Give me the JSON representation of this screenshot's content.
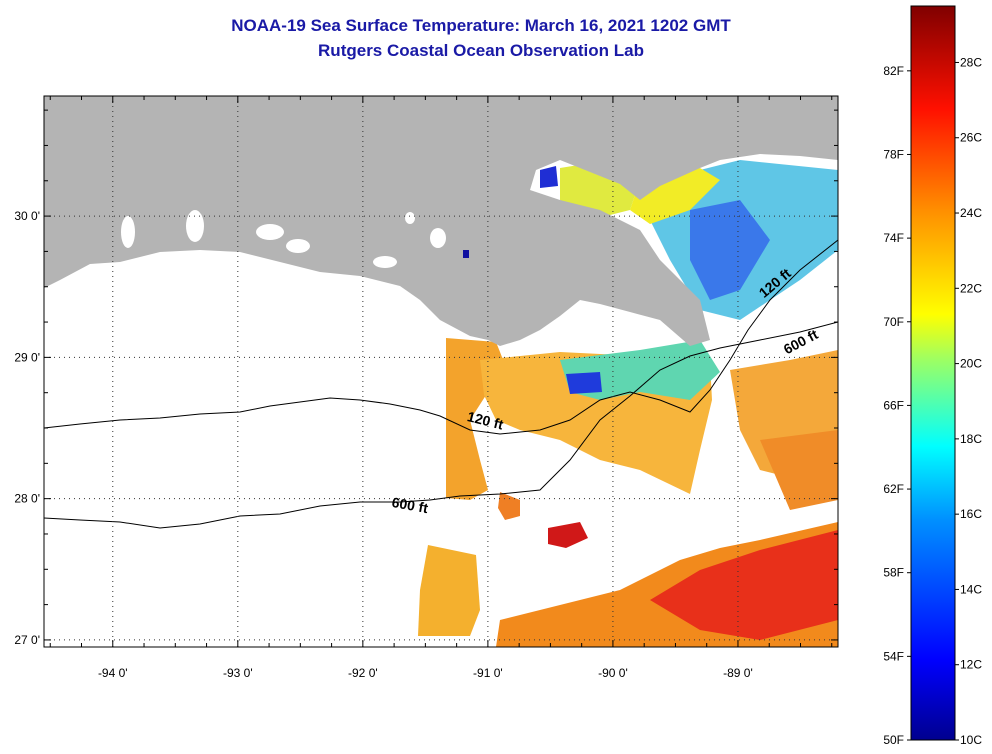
{
  "title": "NOAA-19 Sea Surface Temperature:  March 16, 2021 1202 GMT",
  "subtitle": "Rutgers Coastal Ocean Observation Lab",
  "map": {
    "lon_range": [
      -94.55,
      -88.2
    ],
    "lat_range": [
      26.95,
      30.85
    ],
    "lon_ticks": [
      {
        "value": -94,
        "label": "-94 0'"
      },
      {
        "value": -93,
        "label": "-93 0'"
      },
      {
        "value": -92,
        "label": "-92 0'"
      },
      {
        "value": -91,
        "label": "-91 0'"
      },
      {
        "value": -90,
        "label": "-90 0'"
      },
      {
        "value": -89,
        "label": "-89 0'"
      }
    ],
    "lat_ticks": [
      {
        "value": 30,
        "label": "30 0'"
      },
      {
        "value": 29,
        "label": "29 0'"
      },
      {
        "value": 28,
        "label": "28 0'"
      },
      {
        "value": 27,
        "label": "27 0'"
      }
    ],
    "grid": "dotted",
    "land_color": "#b4b4b4",
    "contour_labels": [
      {
        "text": "120 ft",
        "lon": -91.03,
        "lat": 28.52,
        "rotate": 14
      },
      {
        "text": "600 ft",
        "lon": -91.63,
        "lat": 27.92,
        "rotate": 10
      },
      {
        "text": "120 ft",
        "lon": -88.68,
        "lat": 29.5,
        "rotate": -40
      },
      {
        "text": "600 ft",
        "lon": -88.48,
        "lat": 29.08,
        "rotate": -28
      }
    ]
  },
  "colorbar": {
    "fahrenheit_labels": [
      "82F",
      "78F",
      "74F",
      "70F",
      "66F",
      "62F",
      "58F",
      "54F",
      "50F"
    ],
    "celsius_labels": [
      "28C",
      "26C",
      "24C",
      "22C",
      "20C",
      "18C",
      "16C",
      "14C",
      "12C",
      "10C"
    ],
    "range_c": [
      10,
      29.5
    ],
    "colors": [
      "#00008f",
      "#0000ff",
      "#0080ff",
      "#00ffff",
      "#80ff80",
      "#ffff00",
      "#ff8000",
      "#ff0000",
      "#800000"
    ]
  }
}
